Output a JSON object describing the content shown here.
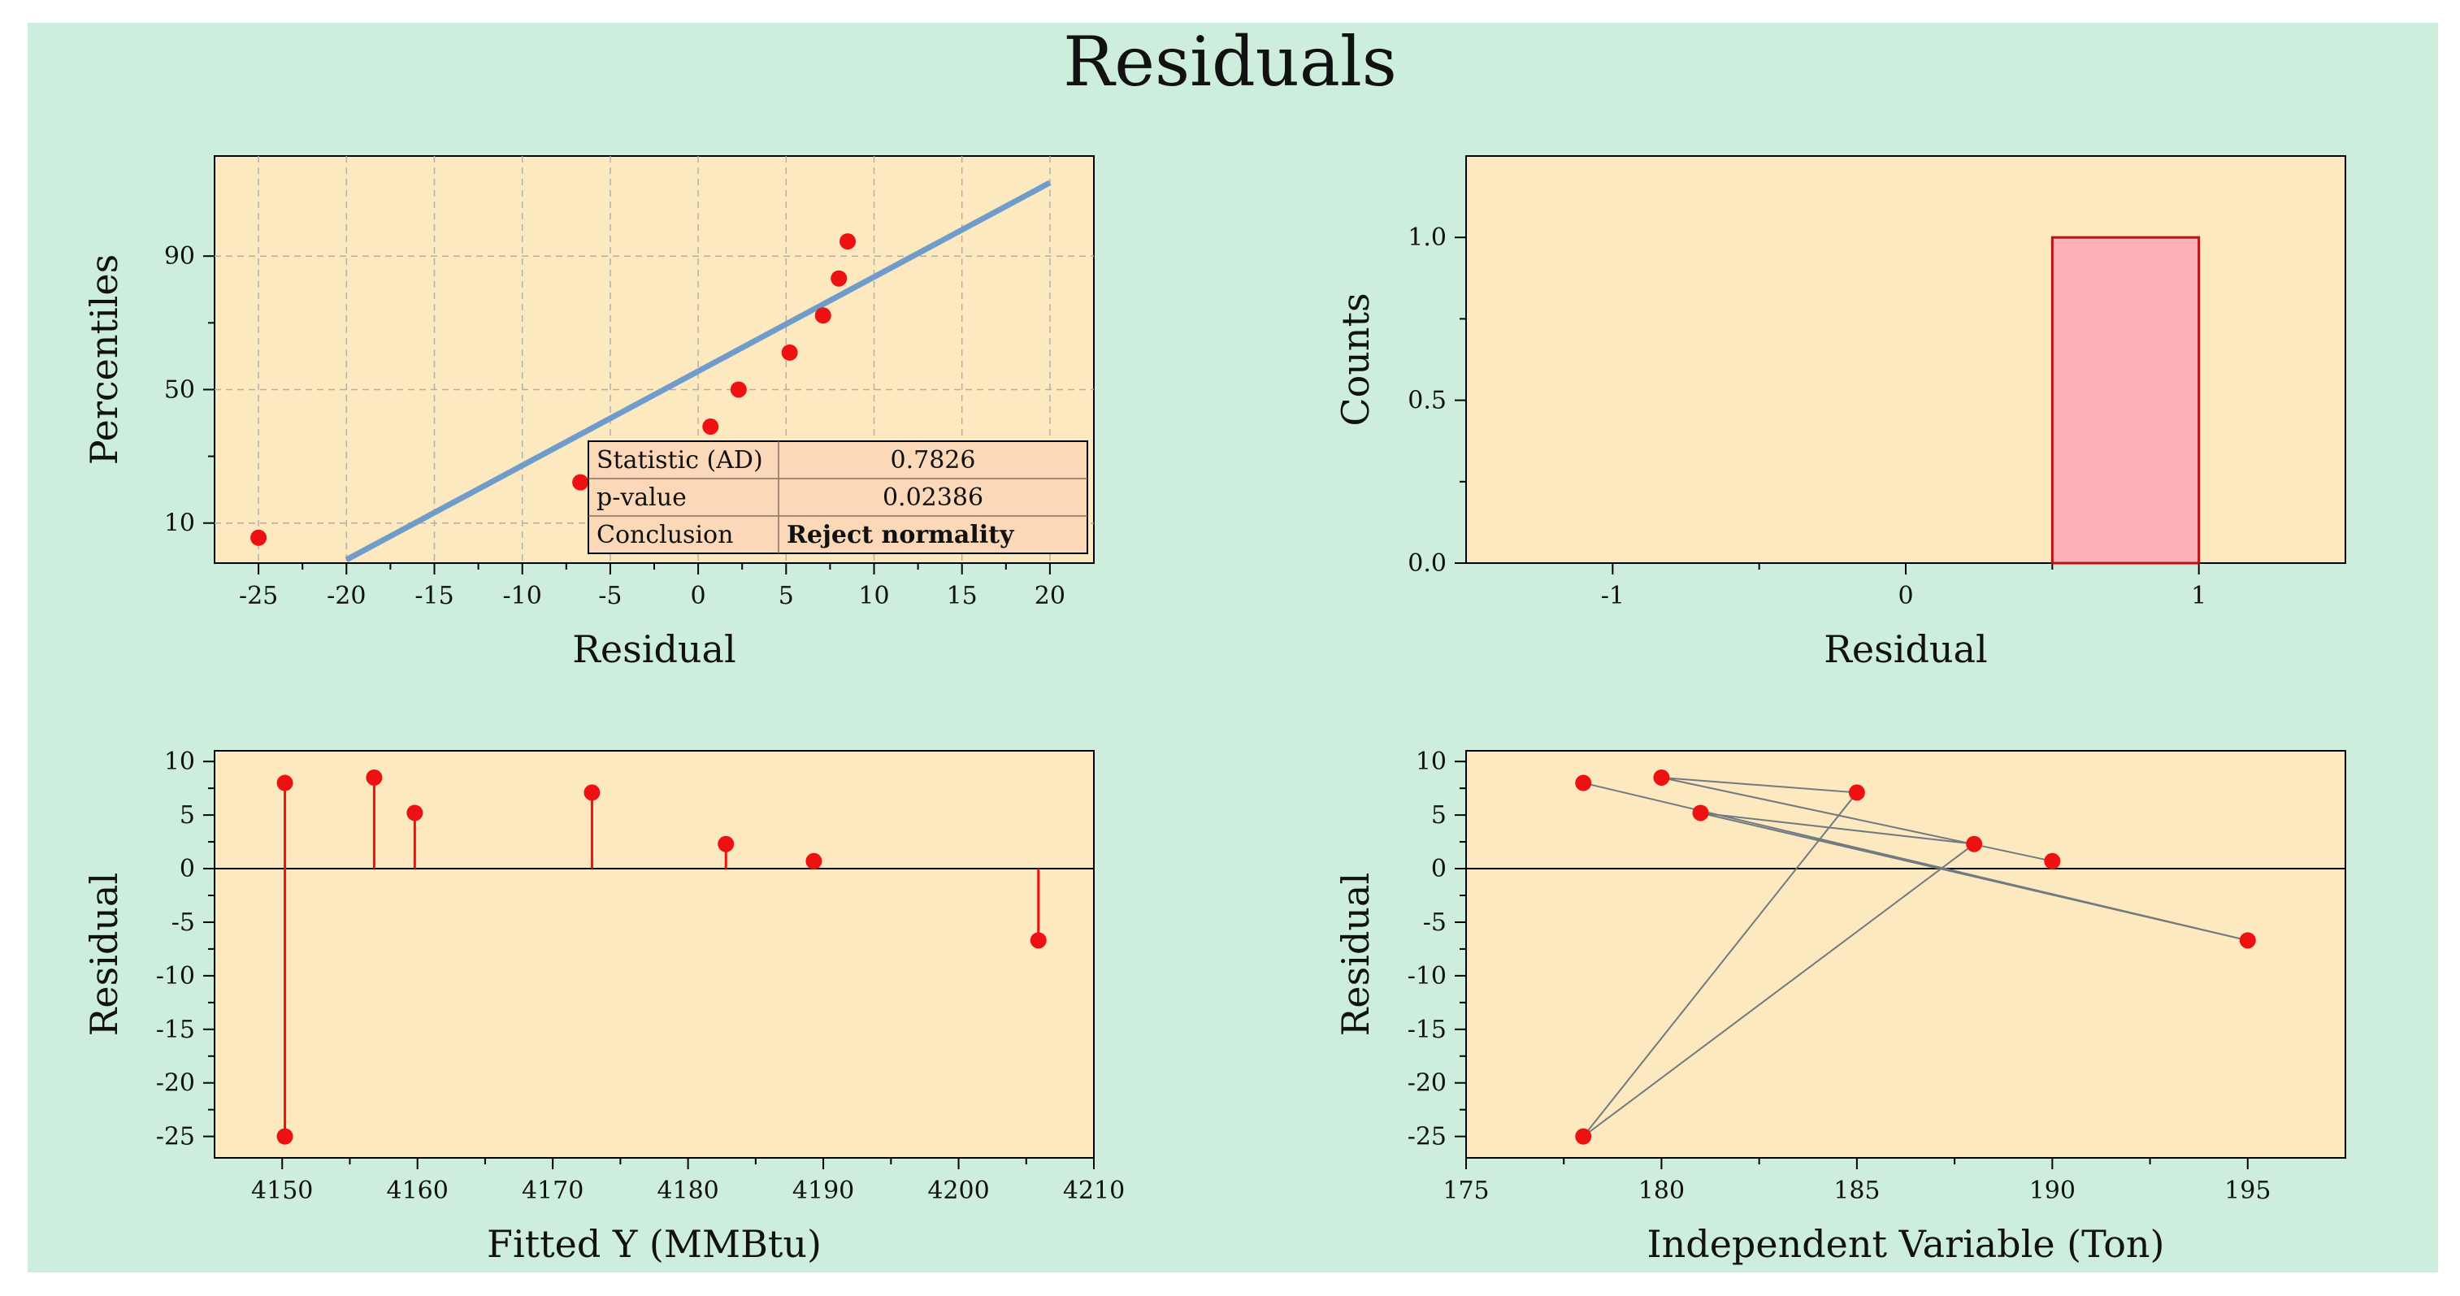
{
  "figure": {
    "title": "Residuals",
    "colors": {
      "background": "#cdeedd",
      "plot_bg": "#fde9bf",
      "marker": "#ee1111",
      "fit_line": "#6f9ccb",
      "bar_fill": "#feb1b7",
      "bar_edge": "#bb1111"
    }
  },
  "chart_data": [
    {
      "id": "normal-prob",
      "type": "scatter",
      "title": "",
      "xlabel": "Residual",
      "ylabel": "Percentiles",
      "xlim": [
        -27.5,
        22.5
      ],
      "ylim": [
        -2,
        120
      ],
      "xticks": [
        -25,
        -20,
        -15,
        -10,
        -5,
        0,
        5,
        10,
        15,
        20
      ],
      "yticks": [
        10,
        50,
        90
      ],
      "grid": true,
      "points": [
        {
          "x": -25,
          "y": 5.6
        },
        {
          "x": -6.7,
          "y": 22.2
        },
        {
          "x": 0.7,
          "y": 38.9
        },
        {
          "x": 2.3,
          "y": 50.0
        },
        {
          "x": 5.2,
          "y": 61.1
        },
        {
          "x": 7.1,
          "y": 72.2
        },
        {
          "x": 8.0,
          "y": 83.3
        },
        {
          "x": 8.5,
          "y": 94.4
        }
      ],
      "fit_line": [
        {
          "x": -20,
          "y": -1
        },
        {
          "x": 20,
          "y": 112
        }
      ],
      "stats_table": {
        "rows": [
          {
            "label": "Statistic (AD)",
            "value": "0.7826"
          },
          {
            "label": "p-value",
            "value": "0.02386"
          },
          {
            "label": "Conclusion",
            "value": "Reject normality"
          }
        ]
      }
    },
    {
      "id": "histogram",
      "type": "bar",
      "title": "",
      "xlabel": "Residual",
      "ylabel": "Counts",
      "xlim": [
        -1.5,
        1.5
      ],
      "ylim": [
        0,
        1.25
      ],
      "xticks": [
        -1,
        0,
        1
      ],
      "yticks": [
        "0.0",
        "0.5",
        "1.0"
      ],
      "bins": [
        {
          "start": 0.5,
          "end": 1.0,
          "count": 1.0
        }
      ]
    },
    {
      "id": "residual-vs-fitted",
      "type": "scatter",
      "title": "",
      "xlabel": "Fitted Y (MMBtu)",
      "ylabel": "Residual",
      "xlim": [
        4145,
        4210
      ],
      "ylim": [
        -27,
        11
      ],
      "xticks": [
        4150,
        4160,
        4170,
        4180,
        4190,
        4200,
        4210
      ],
      "yticks": [
        10,
        5,
        0,
        -5,
        -10,
        -15,
        -20,
        -25
      ],
      "style": "stems",
      "points": [
        {
          "x": 4150.2,
          "y": 8.0
        },
        {
          "x": 4150.2,
          "y": -25.0
        },
        {
          "x": 4156.8,
          "y": 8.5
        },
        {
          "x": 4159.8,
          "y": 5.2
        },
        {
          "x": 4172.9,
          "y": 7.1
        },
        {
          "x": 4182.8,
          "y": 2.3
        },
        {
          "x": 4189.3,
          "y": 0.7
        },
        {
          "x": 4205.9,
          "y": -6.7
        }
      ]
    },
    {
      "id": "residual-vs-independent",
      "type": "line",
      "title": "",
      "xlabel": "Independent Variable (Ton)",
      "ylabel": "Residual",
      "xlim": [
        175,
        197.5
      ],
      "ylim": [
        -27,
        11
      ],
      "xticks": [
        175,
        180,
        185,
        190,
        195
      ],
      "yticks": [
        10,
        5,
        0,
        -5,
        -10,
        -15,
        -20,
        -25
      ],
      "points": [
        {
          "x": 178,
          "y": 8.0
        },
        {
          "x": 195,
          "y": -6.7
        },
        {
          "x": 181,
          "y": 5.2
        },
        {
          "x": 188,
          "y": 2.3
        },
        {
          "x": 178,
          "y": -25.0
        },
        {
          "x": 185,
          "y": 7.1
        },
        {
          "x": 180,
          "y": 8.5
        },
        {
          "x": 190,
          "y": 0.7
        }
      ]
    }
  ]
}
